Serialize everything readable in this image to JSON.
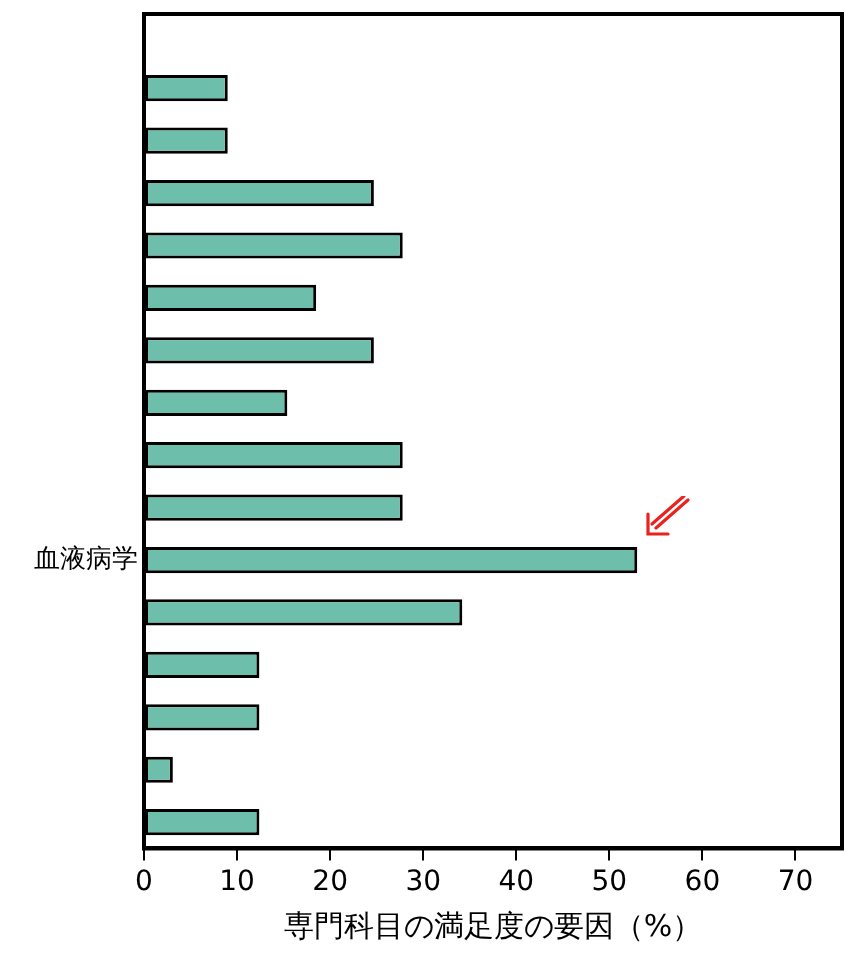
{
  "chart_data": {
    "type": "bar",
    "orientation": "horizontal",
    "xlabel": "専門科目の満足度の要因（%）",
    "categories": [
      null,
      null,
      null,
      null,
      null,
      null,
      null,
      null,
      null,
      "血液病学",
      null,
      null,
      null,
      null,
      null
    ],
    "values": [
      9,
      9,
      24.7,
      27.8,
      18.5,
      24.7,
      15.4,
      27.8,
      27.8,
      53,
      34.2,
      12.4,
      12.4,
      3.1,
      12.4
    ],
    "color": "#6dbfac",
    "xlim": [
      0,
      75
    ],
    "xticks": [
      0,
      10,
      20,
      30,
      40,
      50,
      60,
      70
    ],
    "grid": false,
    "legend": false
  }
}
